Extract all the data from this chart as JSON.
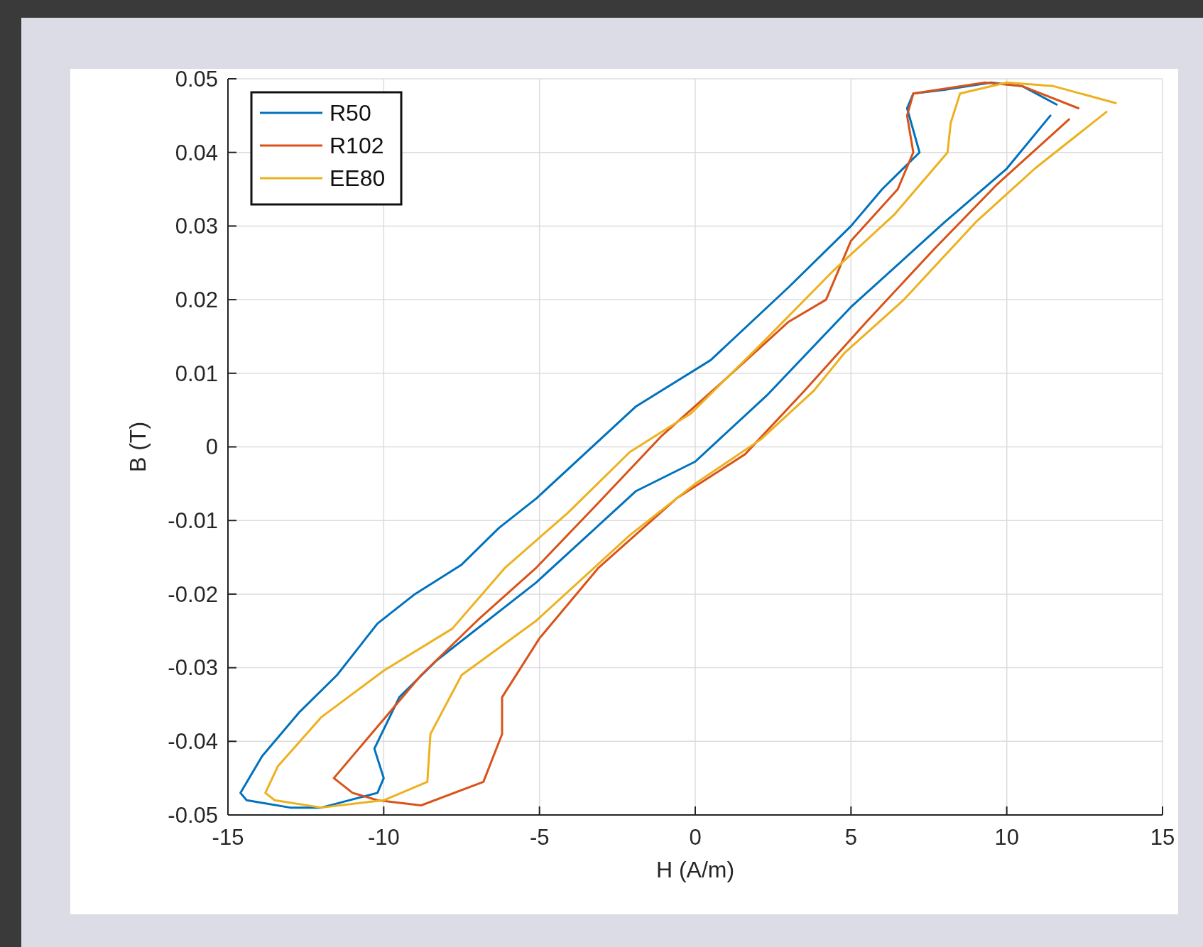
{
  "chart_data": {
    "type": "line",
    "xlabel": "H (A/m)",
    "ylabel": "B (T)",
    "xlim": [
      -15,
      15
    ],
    "ylim": [
      -0.05,
      0.05
    ],
    "xticks": [
      -15,
      -10,
      -5,
      0,
      5,
      10,
      15
    ],
    "yticks": [
      -0.05,
      -0.04,
      -0.03,
      -0.02,
      -0.01,
      0,
      0.01,
      0.02,
      0.03,
      0.04,
      0.05
    ],
    "grid": true,
    "legend": "top left",
    "line_style": "solid",
    "marker": "none",
    "series": [
      {
        "name": "R50",
        "color": "#0072bd",
        "x": [
          11.6,
          10.5,
          9.5,
          8,
          7,
          6.8,
          7.2,
          6,
          5,
          3,
          0.5,
          -1.9,
          -5.1,
          -6.3,
          -7.5,
          -9,
          -10.2,
          -11.5,
          -12.7,
          -13.9,
          -14.6,
          -14.4,
          -13,
          -12,
          -10.2,
          -10,
          -10.3,
          -9.5,
          -8.3,
          -5.1,
          -1.9,
          0,
          2.3,
          5,
          8,
          10,
          11.4
        ],
        "values": [
          0.0465,
          0.049,
          0.0495,
          0.0485,
          0.048,
          0.046,
          0.04,
          0.035,
          0.03,
          0.0217,
          0.0118,
          0.0055,
          -0.007,
          -0.011,
          -0.016,
          -0.02,
          -0.024,
          -0.031,
          -0.036,
          -0.042,
          -0.047,
          -0.048,
          -0.049,
          -0.049,
          -0.047,
          -0.045,
          -0.041,
          -0.034,
          -0.029,
          -0.0184,
          -0.006,
          -0.002,
          0.007,
          0.019,
          0.0305,
          0.0378,
          0.045
        ]
      },
      {
        "name": "R102",
        "color": "#d95319",
        "x": [
          12.3,
          10.5,
          9.3,
          7,
          6.8,
          7,
          6.5,
          5,
          4.2,
          3,
          1.1,
          -1.1,
          -3.2,
          -5.1,
          -7,
          -8.8,
          -10,
          -11.6,
          -11,
          -10.2,
          -8.8,
          -6.8,
          -6.2,
          -6.2,
          -5,
          -3.1,
          -0.6,
          1.6,
          3.5,
          5.5,
          7.7,
          9.7,
          12
        ],
        "values": [
          0.046,
          0.049,
          0.0495,
          0.048,
          0.045,
          0.04,
          0.035,
          0.028,
          0.02,
          0.017,
          0.0097,
          0.0014,
          -0.008,
          -0.0164,
          -0.0236,
          -0.031,
          -0.037,
          -0.045,
          -0.047,
          -0.048,
          -0.0487,
          -0.0455,
          -0.039,
          -0.034,
          -0.026,
          -0.0164,
          -0.007,
          -0.001,
          0.0076,
          0.017,
          0.027,
          0.0357,
          0.0445
        ]
      },
      {
        "name": "EE80",
        "color": "#edb120",
        "x": [
          13.5,
          11.5,
          10,
          8.5,
          8.2,
          8.1,
          6.4,
          4.4,
          2.1,
          -0.15,
          -2.1,
          -4.1,
          -6.1,
          -7.8,
          -10,
          -12,
          -13.4,
          -13.8,
          -13.5,
          -12,
          -10,
          -8.6,
          -8.5,
          -7.5,
          -5.1,
          -2.1,
          0,
          2.1,
          3.8,
          4.8,
          6.7,
          9,
          10.9,
          13.2
        ],
        "values": [
          0.0467,
          0.049,
          0.0495,
          0.048,
          0.044,
          0.04,
          0.0316,
          0.0238,
          0.0139,
          0.0045,
          -0.0007,
          -0.009,
          -0.0164,
          -0.0247,
          -0.0304,
          -0.0367,
          -0.0434,
          -0.047,
          -0.048,
          -0.049,
          -0.048,
          -0.0455,
          -0.039,
          -0.031,
          -0.0236,
          -0.012,
          -0.005,
          0.001,
          0.0076,
          0.0128,
          0.02,
          0.0305,
          0.0378,
          0.0455
        ]
      }
    ]
  }
}
